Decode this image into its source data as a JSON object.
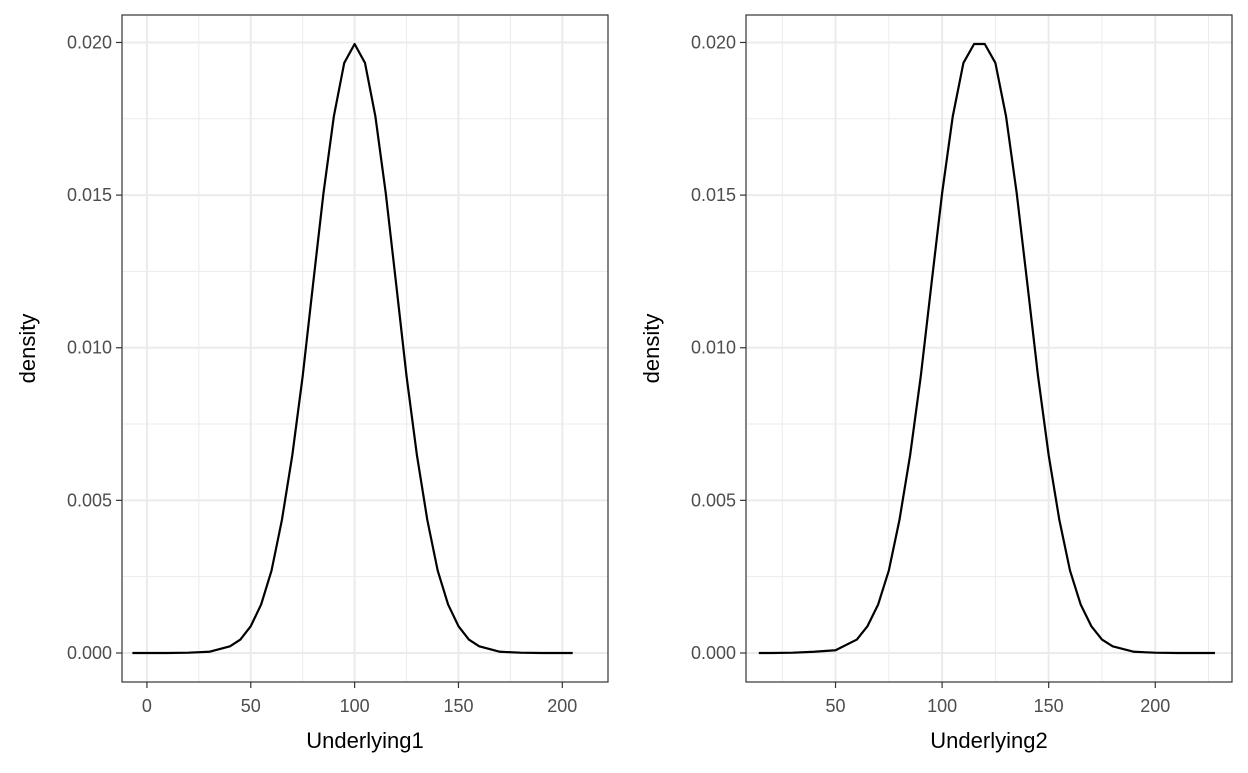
{
  "chart_data": [
    {
      "type": "line",
      "panel": "left",
      "xlabel": "Underlying1",
      "ylabel": "density",
      "xlim": [
        -12,
        222
      ],
      "ylim": [
        -0.00095,
        0.0209
      ],
      "x_ticks": [
        0,
        50,
        100,
        150,
        200
      ],
      "x_tick_labels": [
        "0",
        "50",
        "100",
        "150",
        "200"
      ],
      "y_ticks": [
        0,
        0.005,
        0.01,
        0.015,
        0.02
      ],
      "y_tick_labels": [
        "0.000",
        "0.005",
        "0.010",
        "0.015",
        "0.020"
      ],
      "grid": true,
      "series": [
        {
          "x": [
            -7,
            0,
            10,
            20,
            30,
            40,
            45,
            50,
            55,
            60,
            65,
            70,
            75,
            80,
            85,
            90,
            95,
            100,
            105,
            110,
            115,
            120,
            125,
            130,
            135,
            140,
            145,
            150,
            155,
            160,
            170,
            180,
            190,
            205
          ],
          "y": [
            0.0,
            0.0,
            0.0,
            1e-05,
            4e-05,
            0.00022,
            0.00044,
            0.00088,
            0.00159,
            0.0027,
            0.00436,
            0.00648,
            0.00907,
            0.01209,
            0.01506,
            0.01758,
            0.01933,
            0.01995,
            0.01933,
            0.01758,
            0.01506,
            0.01209,
            0.00907,
            0.00648,
            0.00436,
            0.0027,
            0.00159,
            0.00088,
            0.00044,
            0.00022,
            4e-05,
            1e-05,
            0.0,
            0.0
          ]
        }
      ]
    },
    {
      "type": "line",
      "panel": "right",
      "xlabel": "Underlying2",
      "ylabel": "density",
      "xlim": [
        8,
        236
      ],
      "ylim": [
        -0.00095,
        0.0209
      ],
      "x_ticks": [
        50,
        100,
        150,
        200
      ],
      "x_tick_labels": [
        "50",
        "100",
        "150",
        "200"
      ],
      "y_ticks": [
        0,
        0.005,
        0.01,
        0.015,
        0.02
      ],
      "y_tick_labels": [
        "0.000",
        "0.005",
        "0.010",
        "0.015",
        "0.020"
      ],
      "grid": true,
      "series": [
        {
          "x": [
            14,
            20,
            30,
            40,
            50,
            60,
            65,
            70,
            75,
            80,
            85,
            90,
            95,
            100,
            105,
            110,
            115,
            120,
            125,
            130,
            135,
            140,
            145,
            150,
            155,
            160,
            165,
            170,
            175,
            180,
            190,
            200,
            210,
            228
          ],
          "y": [
            0.0,
            0.0,
            1e-05,
            4e-05,
            9e-05,
            0.00044,
            0.00088,
            0.00159,
            0.0027,
            0.00436,
            0.00648,
            0.00907,
            0.01209,
            0.01506,
            0.01758,
            0.01933,
            0.01995,
            0.01995,
            0.01933,
            0.01758,
            0.01506,
            0.01209,
            0.00907,
            0.00648,
            0.00436,
            0.0027,
            0.00159,
            0.00088,
            0.00044,
            0.00022,
            4e-05,
            1e-05,
            0.0,
            0.0
          ]
        }
      ]
    }
  ]
}
